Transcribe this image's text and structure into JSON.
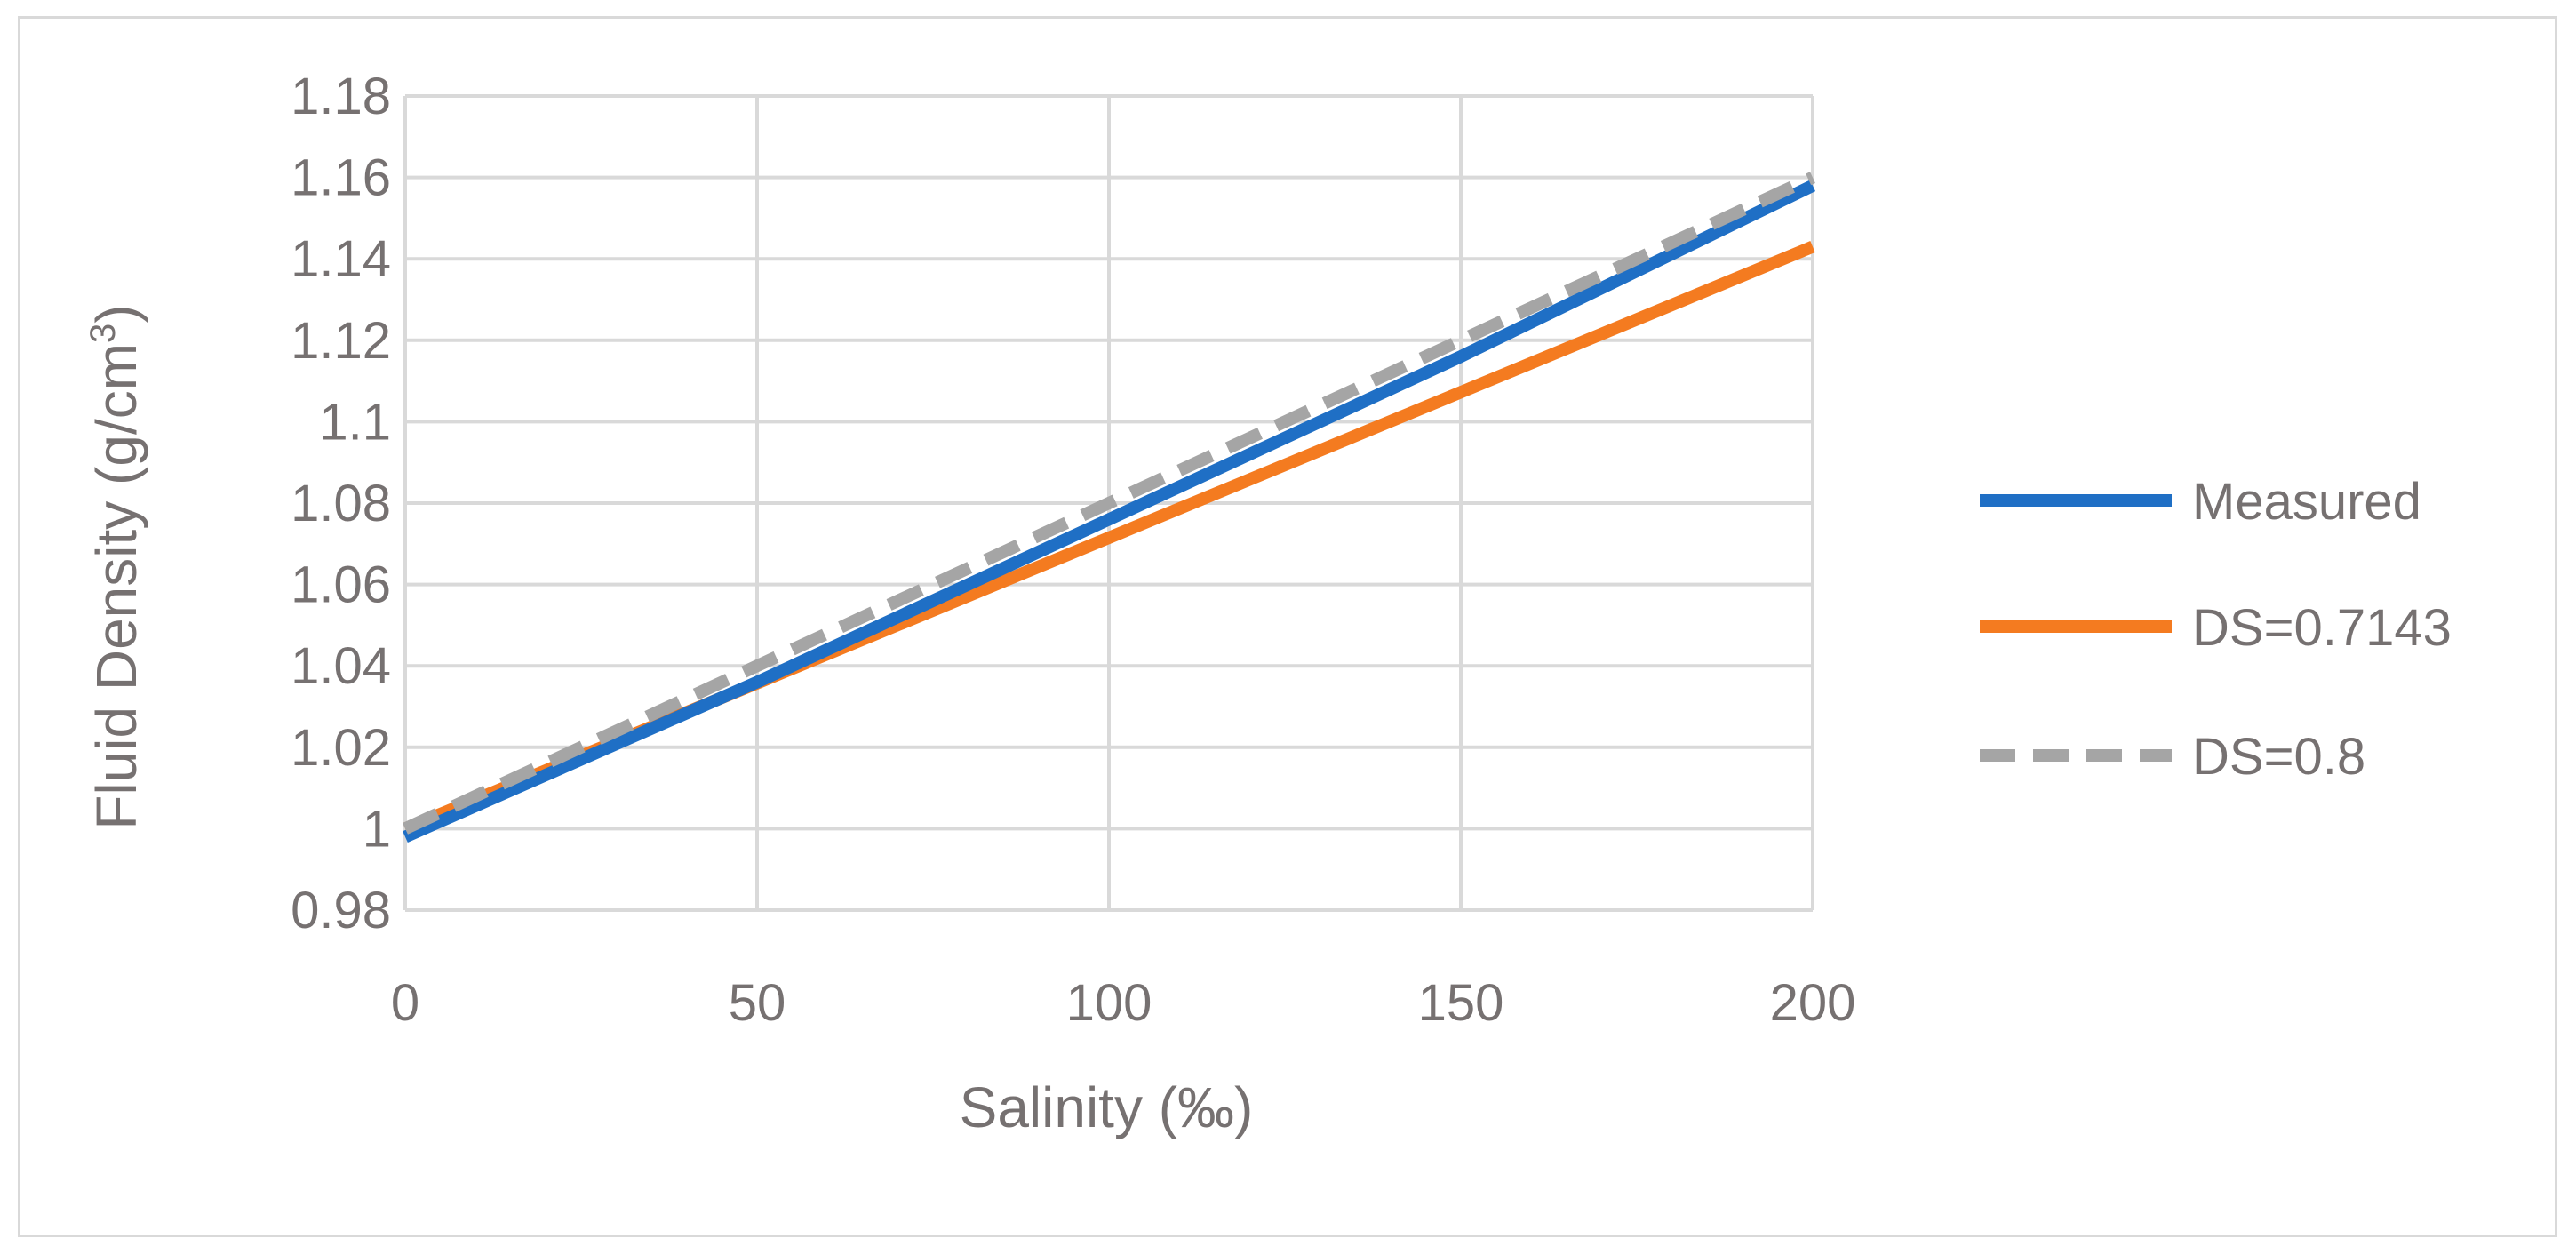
{
  "chart_data": {
    "type": "line",
    "xlabel": "Salinity (‰)",
    "ylabel_main": "Fluid Density (g/cm",
    "ylabel_sup": "3",
    "ylabel_end": ")",
    "xlim": [
      0,
      200
    ],
    "ylim": [
      0.98,
      1.18
    ],
    "x_ticks": [
      0,
      50,
      100,
      150,
      200
    ],
    "x_tick_labels": [
      "0",
      "50",
      "100",
      "150",
      "200"
    ],
    "y_ticks": [
      0.98,
      1.0,
      1.02,
      1.04,
      1.06,
      1.08,
      1.1,
      1.12,
      1.14,
      1.16,
      1.18
    ],
    "y_tick_labels": [
      "0.98",
      "1",
      "1.02",
      "1.04",
      "1.06",
      "1.08",
      "1.1",
      "1.12",
      "1.14",
      "1.16",
      "1.18"
    ],
    "grid": true,
    "legend_position": "right",
    "series": [
      {
        "name": "Measured",
        "color": "#1f6fc5",
        "dash": "solid",
        "x": [
          0,
          25,
          50,
          75,
          100,
          125,
          150,
          175,
          200
        ],
        "y": [
          0.998,
          1.017,
          1.036,
          1.056,
          1.076,
          1.096,
          1.116,
          1.137,
          1.158
        ]
      },
      {
        "name": "DS=0.7143",
        "color": "#f47b20",
        "dash": "solid",
        "x": [
          0,
          200
        ],
        "y": [
          1.0,
          1.143
        ]
      },
      {
        "name": "DS=0.8",
        "color": "#a5a5a5",
        "dash": "dashed",
        "x": [
          0,
          200
        ],
        "y": [
          1.0,
          1.16
        ]
      }
    ]
  }
}
